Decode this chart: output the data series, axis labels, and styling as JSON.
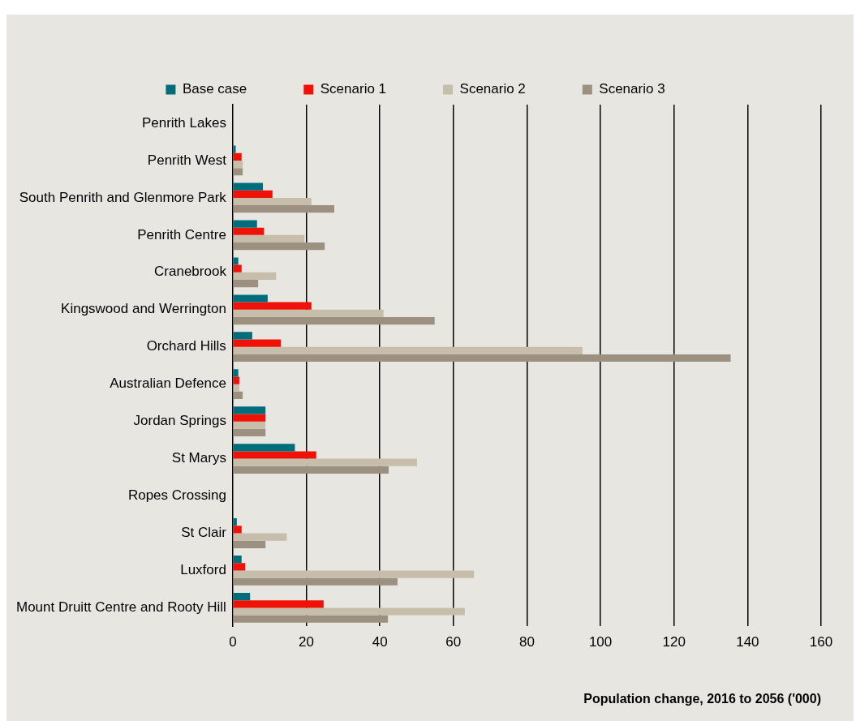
{
  "chart_data": {
    "type": "bar",
    "orientation": "horizontal",
    "xlabel": "Population change, 2016 to 2056 ('000)",
    "categories": [
      "Penrith Lakes",
      "Penrith West",
      "South Penrith and Glenmore Park",
      "Penrith Centre",
      "Cranebrook",
      "Kingswood and Werrington",
      "Orchard Hills",
      "Australian Defence",
      "Jordan Springs",
      "St Marys",
      "Ropes Crossing",
      "St Clair",
      "Luxford",
      "Mount Druitt Centre and Rooty Hill"
    ],
    "series": [
      {
        "name": "Base case",
        "color": "#006d7a",
        "values": [
          0,
          0.8,
          8.2,
          6.6,
          1.5,
          9.5,
          5.3,
          1.5,
          8.9,
          16.9,
          0,
          1.1,
          2.4,
          4.7
        ]
      },
      {
        "name": "Scenario 1",
        "color": "#f01208",
        "values": [
          0,
          2.4,
          10.8,
          8.5,
          2.4,
          21.4,
          13.1,
          1.8,
          8.9,
          22.7,
          0,
          2.4,
          3.4,
          24.7
        ]
      },
      {
        "name": "Scenario 2",
        "color": "#c6beab",
        "values": [
          0,
          2.7,
          21.4,
          19.5,
          11.8,
          41,
          95.1,
          1.8,
          8.9,
          50.1,
          0,
          14.7,
          65.6,
          63.1
        ]
      },
      {
        "name": "Scenario 3",
        "color": "#9c9080",
        "values": [
          0,
          2.7,
          27.6,
          25,
          6.9,
          54.9,
          135.4,
          2.7,
          8.9,
          42.4,
          0,
          8.9,
          44.8,
          42.2
        ]
      }
    ],
    "xlim": [
      0,
      160
    ],
    "xticks": [
      0,
      20,
      40,
      60,
      80,
      100,
      120,
      140,
      160
    ],
    "grid": "x",
    "legend": "top"
  }
}
